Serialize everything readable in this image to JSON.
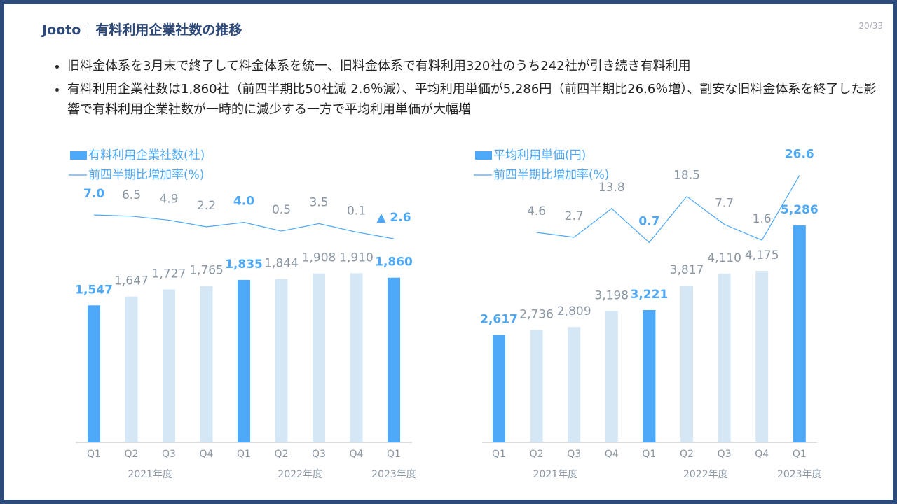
{
  "header": {
    "brand": "Jooto",
    "title": "有料利用企業社数の推移",
    "page": "20/33"
  },
  "bullets": [
    "旧料金体系を3月末で終了して料金体系を統一、旧料金体系で有料利用320社のうち242社が引き続き有料利用",
    "有料利用企業社数は1,860社（前四半期比50社減 2.6％減）、平均利用単価が5,286円（前四半期比26.6％増）、割安な旧料金体系を終了した影響で有料利用企業社数が一時的に減少する一方で平均利用単価が大幅増"
  ],
  "chart_data": [
    {
      "type": "bar",
      "categories": [
        "Q1",
        "Q2",
        "Q3",
        "Q4",
        "Q1",
        "Q2",
        "Q3",
        "Q4",
        "Q1"
      ],
      "x_groups": [
        "2021年度",
        "2022年度",
        "2023年度"
      ],
      "ylim": [
        0,
        2000
      ],
      "y2lim": [
        -5,
        10
      ],
      "series": [
        {
          "name": "有料利用企業社数(社)",
          "color": "#4da8f7",
          "colors": [
            "#4da8f7",
            "#d5e6f5",
            "#d5e6f5",
            "#d5e6f5",
            "#4da8f7",
            "#d5e6f5",
            "#d5e6f5",
            "#d5e6f5",
            "#4da8f7"
          ],
          "values": [
            1547,
            1647,
            1727,
            1765,
            1835,
            1844,
            1908,
            1910,
            1860
          ],
          "value_labels": [
            "1,547",
            "1,647",
            "1,727",
            "1,765",
            "1,835",
            "1,844",
            "1,908",
            "1,910",
            "1,860"
          ]
        },
        {
          "name": "前四半期比増加率(%)",
          "color": "#4da8f7",
          "axis": "y2",
          "values": [
            7.0,
            6.5,
            4.9,
            2.2,
            4.0,
            0.5,
            3.5,
            0.1,
            -2.6
          ],
          "value_labels": [
            "7.0",
            "6.5",
            "4.9",
            "2.2",
            "4.0",
            "0.5",
            "3.5",
            "0.1",
            "▲ 2.6"
          ]
        }
      ]
    },
    {
      "type": "bar",
      "categories": [
        "Q1",
        "Q2",
        "Q3",
        "Q4",
        "Q1",
        "Q2",
        "Q3",
        "Q4",
        "Q1"
      ],
      "x_groups": [
        "2021年度",
        "2022年度",
        "2023年度"
      ],
      "ylim": [
        0,
        6000
      ],
      "y2lim": [
        0,
        30
      ],
      "series": [
        {
          "name": "平均利用単価(円)",
          "color": "#4da8f7",
          "colors": [
            "#4da8f7",
            "#d5e6f5",
            "#d5e6f5",
            "#d5e6f5",
            "#4da8f7",
            "#d5e6f5",
            "#d5e6f5",
            "#d5e6f5",
            "#4da8f7"
          ],
          "values": [
            2617,
            2736,
            2809,
            3198,
            3221,
            3817,
            4110,
            4175,
            5286
          ],
          "value_labels": [
            "2,617",
            "2,736",
            "2,809",
            "3,198",
            "3,221",
            "3,817",
            "4,110",
            "4,175",
            "5,286"
          ]
        },
        {
          "name": "前四半期比増加率(%)",
          "color": "#4da8f7",
          "axis": "y2",
          "values": [
            null,
            4.6,
            2.7,
            13.8,
            0.7,
            18.5,
            7.7,
            1.6,
            26.6
          ],
          "value_labels": [
            null,
            "4.6",
            "2.7",
            "13.8",
            "0.7",
            "18.5",
            "7.7",
            "1.6",
            "26.6"
          ]
        }
      ]
    }
  ]
}
